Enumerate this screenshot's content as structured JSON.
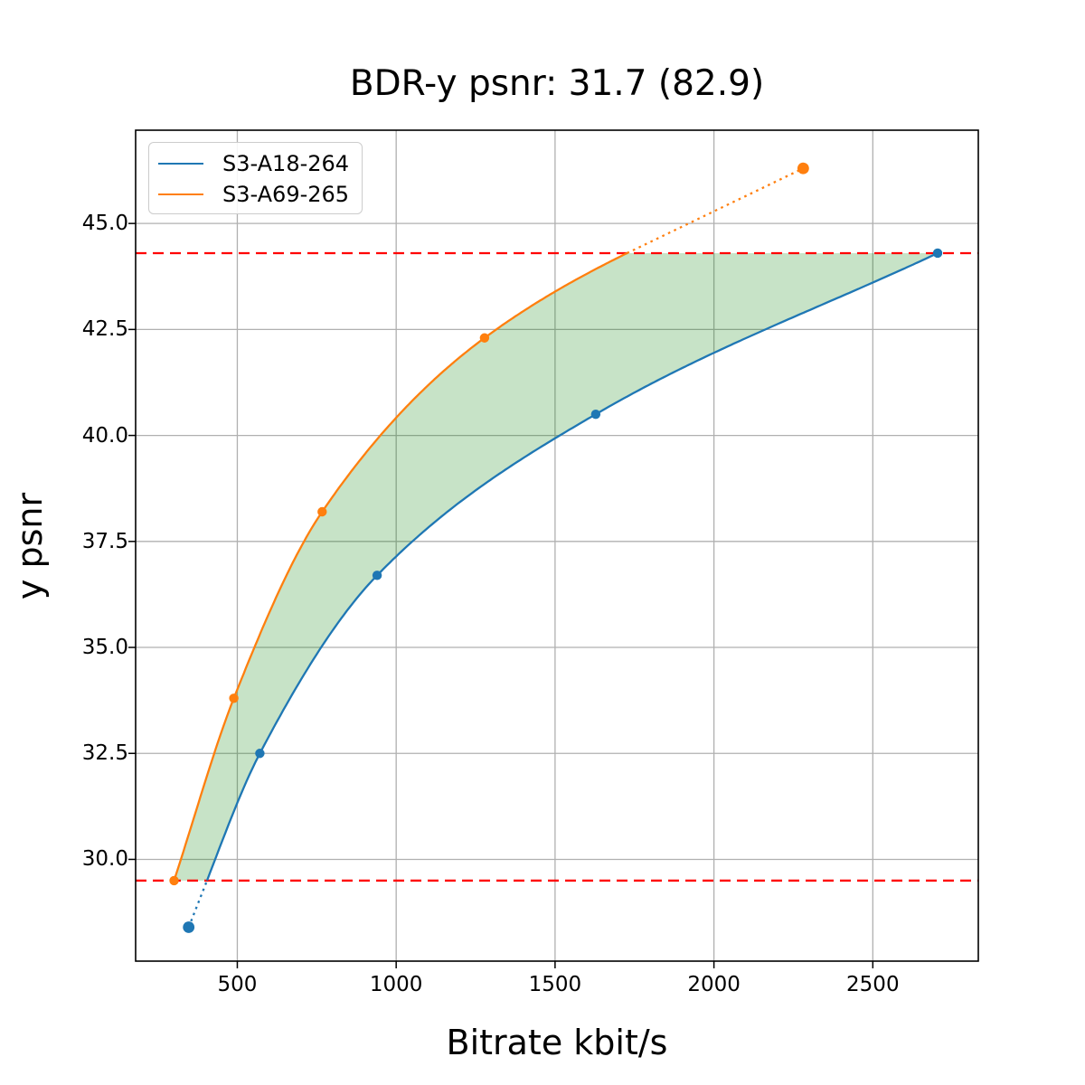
{
  "chart_data": {
    "type": "line",
    "title": "BDR-y psnr: 31.7 (82.9)",
    "xlabel": "Bitrate kbit/s",
    "ylabel": "y psnr",
    "xlim": [
      180,
      2832
    ],
    "ylim": [
      27.6,
      47.2
    ],
    "x_ticks": {
      "values": [
        500,
        1000,
        1500,
        2000,
        2500
      ],
      "labels": [
        "500",
        "1000",
        "1500",
        "2000",
        "2500"
      ]
    },
    "y_ticks": {
      "values": [
        30,
        32.5,
        35,
        37.5,
        40,
        42.5,
        45
      ],
      "labels": [
        "30.0",
        "32.5",
        "35.0",
        "37.5",
        "40.0",
        "42.5",
        "45.0"
      ]
    },
    "grid": true,
    "legend_position": "upper left",
    "series": [
      {
        "name": "S3-A18-264",
        "color": "#1f77b4",
        "x": [
          347,
          571,
          940,
          1628,
          2704
        ],
        "y": [
          28.4,
          32.5,
          36.7,
          40.5,
          44.3
        ],
        "out_of_overlap_end": "low"
      },
      {
        "name": "S3-A69-265",
        "color": "#ff7f0e",
        "x": [
          301,
          489,
          767,
          1278,
          2281
        ],
        "y": [
          29.5,
          33.8,
          38.2,
          42.3,
          46.3
        ],
        "out_of_overlap_end": "high"
      }
    ],
    "overlap_region": {
      "psnr_low": 29.5,
      "psnr_high": 44.3,
      "fill_color": "#008000",
      "fill_opacity": 0.22
    },
    "hlines": [
      {
        "y": 44.3,
        "color": "#ff0000",
        "style": "dashed"
      },
      {
        "y": 29.5,
        "color": "#ff0000",
        "style": "dashed"
      }
    ]
  },
  "style": {
    "grid_color": "#b0b0b0",
    "spine_color": "#000000",
    "tick_color": "#000000",
    "text_color": "#000000"
  }
}
